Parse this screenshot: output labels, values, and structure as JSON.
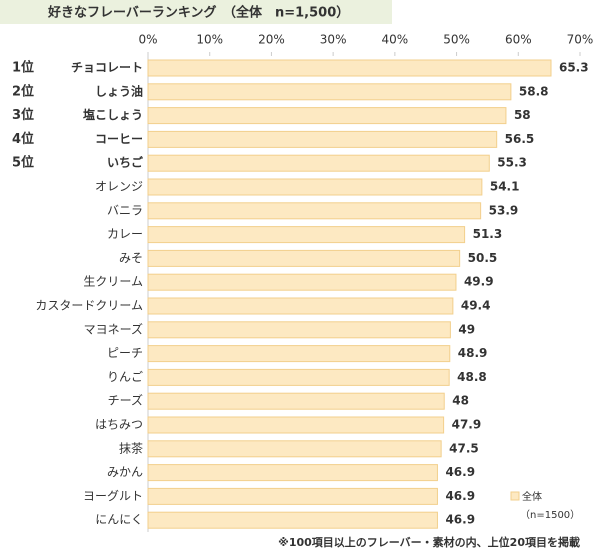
{
  "chart_data": {
    "type": "bar",
    "orientation": "horizontal",
    "title": "好きなフレーバーランキング　（全体　n=1,500）",
    "categories": [
      "チョコレート",
      "しょう油",
      "塩こしょう",
      "コーヒー",
      "いちご",
      "オレンジ",
      "バニラ",
      "カレー",
      "みそ",
      "生クリーム",
      "カスタードクリーム",
      "マヨネーズ",
      "ピーチ",
      "りんご",
      "チーズ",
      "はちみつ",
      "抹茶",
      "みかん",
      "ヨーグルト",
      "にんにく"
    ],
    "ranks": [
      "1位",
      "2位",
      "3位",
      "4位",
      "5位"
    ],
    "rank_colors": [
      "#e60012",
      "#b07d10",
      "#b07d10",
      "#333333",
      "#333333"
    ],
    "series": [
      {
        "name": "全体",
        "color": "#fde9c2",
        "values": [
          65.3,
          58.8,
          58.0,
          56.5,
          55.3,
          54.1,
          53.9,
          51.3,
          50.5,
          49.9,
          49.4,
          49.0,
          48.9,
          48.8,
          48.0,
          47.9,
          47.5,
          46.9,
          46.9,
          46.9
        ]
      }
    ],
    "legend_note": "（n=1500）",
    "xlim": [
      0,
      70
    ],
    "xticks": [
      {
        "value": 0,
        "label": "0%"
      },
      {
        "value": 10,
        "label": "10%"
      },
      {
        "value": 20,
        "label": "20%"
      },
      {
        "value": 30,
        "label": "30%"
      },
      {
        "value": 40,
        "label": "40%"
      },
      {
        "value": 50,
        "label": "50%"
      },
      {
        "value": 60,
        "label": "60%"
      },
      {
        "value": 70,
        "label": "70%"
      }
    ],
    "footnote": "※100項目以上のフレーバー・素材の内、上位20項目を掲載"
  }
}
